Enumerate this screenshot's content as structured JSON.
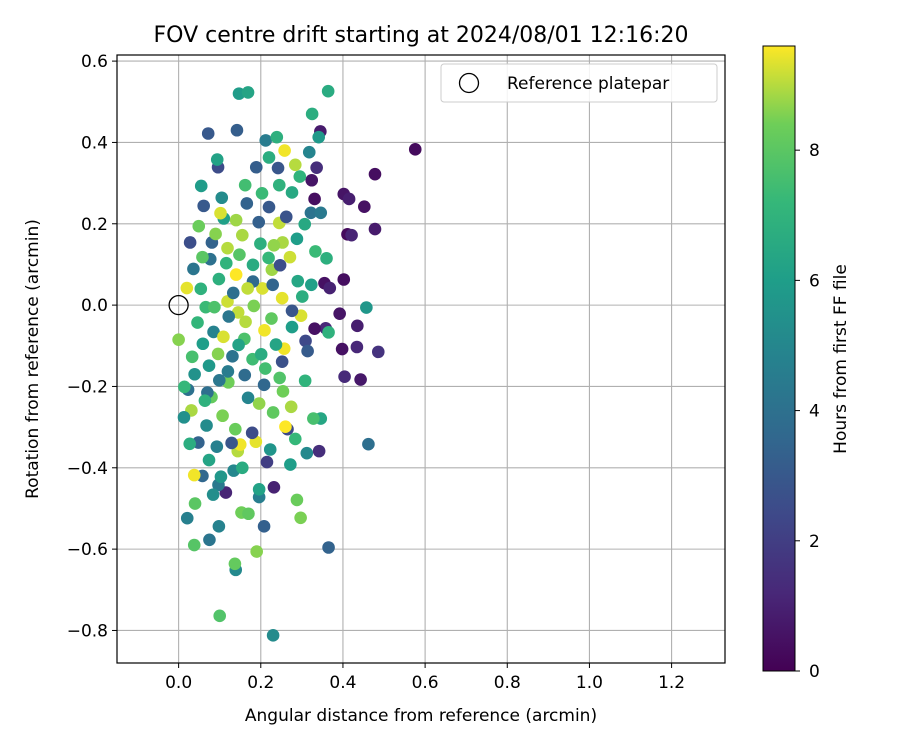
{
  "chart_data": {
    "type": "scatter",
    "title": "FOV centre drift starting at 2024/08/01 12:16:20",
    "xlabel": "Angular distance from reference (arcmin)",
    "ylabel": "Rotation from reference (arcmin)",
    "xlim": [
      -0.15,
      1.33
    ],
    "ylim": [
      -0.88,
      0.615
    ],
    "xticks": [
      "0.0",
      "0.2",
      "0.4",
      "0.6",
      "0.8",
      "1.0",
      "1.2"
    ],
    "yticks": [
      "−0.8",
      "−0.6",
      "−0.4",
      "−0.2",
      "0.0",
      "0.2",
      "0.4",
      "0.6"
    ],
    "grid": true,
    "legend": {
      "placement": "upper right",
      "entries": [
        "Reference platepar"
      ]
    },
    "reference_point": {
      "x": 0.0,
      "y": 0.0
    },
    "colorbar": {
      "label": "Hours from first FF file",
      "colormap": "viridis",
      "range": [
        0,
        9.6
      ],
      "ticks": [
        "0",
        "2",
        "4",
        "6",
        "8"
      ]
    },
    "points": [
      {
        "x": 0.576,
        "y": 0.383,
        "h": 0.3
      },
      {
        "x": 0.478,
        "y": 0.322,
        "h": 0.4
      },
      {
        "x": 0.402,
        "y": 0.273,
        "h": 0.6
      },
      {
        "x": 0.415,
        "y": 0.261,
        "h": 0.9
      },
      {
        "x": 0.452,
        "y": 0.242,
        "h": 0.5
      },
      {
        "x": 0.478,
        "y": 0.187,
        "h": 0.8
      },
      {
        "x": 0.411,
        "y": 0.174,
        "h": 0.3
      },
      {
        "x": 0.421,
        "y": 0.172,
        "h": 1.1
      },
      {
        "x": 0.402,
        "y": 0.063,
        "h": 0.4
      },
      {
        "x": 0.392,
        "y": -0.021,
        "h": 0.6
      },
      {
        "x": 0.435,
        "y": -0.051,
        "h": 0.9
      },
      {
        "x": 0.398,
        "y": -0.108,
        "h": 0.5
      },
      {
        "x": 0.434,
        "y": -0.103,
        "h": 1.2
      },
      {
        "x": 0.486,
        "y": -0.115,
        "h": 1.6
      },
      {
        "x": 0.404,
        "y": -0.176,
        "h": 1.3
      },
      {
        "x": 0.443,
        "y": -0.183,
        "h": 0.7
      },
      {
        "x": 0.345,
        "y": 0.427,
        "h": 0.8
      },
      {
        "x": 0.336,
        "y": 0.338,
        "h": 1.4
      },
      {
        "x": 0.324,
        "y": 0.307,
        "h": 0.6
      },
      {
        "x": 0.331,
        "y": 0.261,
        "h": 0.4
      },
      {
        "x": 0.355,
        "y": 0.054,
        "h": 0.5
      },
      {
        "x": 0.368,
        "y": 0.042,
        "h": 1.0
      },
      {
        "x": 0.358,
        "y": -0.057,
        "h": 1.2
      },
      {
        "x": 0.331,
        "y": -0.058,
        "h": 0.5
      },
      {
        "x": 0.309,
        "y": -0.088,
        "h": 2.4
      },
      {
        "x": 0.342,
        "y": -0.359,
        "h": 1.4
      },
      {
        "x": 0.232,
        "y": -0.448,
        "h": 1.0
      },
      {
        "x": 0.115,
        "y": -0.461,
        "h": 1.1
      },
      {
        "x": 0.215,
        "y": -0.386,
        "h": 2.0
      },
      {
        "x": 0.265,
        "y": -0.305,
        "h": 2.4
      },
      {
        "x": 0.142,
        "y": 0.43,
        "h": 3.2
      },
      {
        "x": 0.072,
        "y": 0.422,
        "h": 3.0
      },
      {
        "x": 0.096,
        "y": 0.339,
        "h": 2.5
      },
      {
        "x": 0.189,
        "y": 0.339,
        "h": 3.2
      },
      {
        "x": 0.242,
        "y": 0.337,
        "h": 2.9
      },
      {
        "x": 0.028,
        "y": 0.154,
        "h": 2.6
      },
      {
        "x": 0.081,
        "y": 0.154,
        "h": 3.4
      },
      {
        "x": 0.061,
        "y": 0.244,
        "h": 3.0
      },
      {
        "x": 0.208,
        "y": -0.544,
        "h": 3.3
      },
      {
        "x": 0.365,
        "y": -0.596,
        "h": 3.4
      },
      {
        "x": 0.462,
        "y": -0.342,
        "h": 3.9
      },
      {
        "x": 0.075,
        "y": -0.577,
        "h": 4.2
      },
      {
        "x": 0.021,
        "y": -0.524,
        "h": 4.7
      },
      {
        "x": 0.023,
        "y": -0.208,
        "h": 4.0
      },
      {
        "x": 0.058,
        "y": -0.42,
        "h": 3.6
      },
      {
        "x": 0.097,
        "y": -0.442,
        "h": 4.4
      },
      {
        "x": 0.196,
        "y": -0.472,
        "h": 4.6
      },
      {
        "x": 0.23,
        "y": -0.812,
        "h": 5.2
      },
      {
        "x": 0.139,
        "y": -0.651,
        "h": 5.1
      },
      {
        "x": 0.098,
        "y": -0.544,
        "h": 4.8
      },
      {
        "x": 0.322,
        "y": 0.227,
        "h": 4.1
      },
      {
        "x": 0.346,
        "y": 0.227,
        "h": 4.4
      },
      {
        "x": 0.341,
        "y": 0.413,
        "h": 5.8
      },
      {
        "x": 0.318,
        "y": 0.376,
        "h": 4.9
      },
      {
        "x": 0.212,
        "y": 0.405,
        "h": 4.5
      },
      {
        "x": 0.147,
        "y": 0.52,
        "h": 5.9
      },
      {
        "x": 0.364,
        "y": 0.526,
        "h": 6.6
      },
      {
        "x": 0.11,
        "y": 0.213,
        "h": 6.1
      },
      {
        "x": 0.325,
        "y": 0.47,
        "h": 6.7
      },
      {
        "x": 0.36,
        "y": 0.115,
        "h": 6.8
      },
      {
        "x": 0.457,
        "y": -0.006,
        "h": 5.7
      },
      {
        "x": 0.365,
        "y": -0.067,
        "h": 6.9
      },
      {
        "x": 0.346,
        "y": -0.279,
        "h": 6.4
      },
      {
        "x": 0.272,
        "y": -0.392,
        "h": 6.0
      },
      {
        "x": 0.239,
        "y": 0.413,
        "h": 6.8
      },
      {
        "x": 0.094,
        "y": 0.358,
        "h": 6.2
      },
      {
        "x": 0.055,
        "y": 0.293,
        "h": 5.9
      },
      {
        "x": 0.105,
        "y": 0.264,
        "h": 5.2
      },
      {
        "x": 0.169,
        "y": 0.523,
        "h": 6.3
      },
      {
        "x": 0.22,
        "y": 0.363,
        "h": 6.7
      },
      {
        "x": 0.276,
        "y": 0.277,
        "h": 6.5
      },
      {
        "x": 0.295,
        "y": 0.316,
        "h": 7.0
      },
      {
        "x": 0.333,
        "y": 0.132,
        "h": 7.3
      },
      {
        "x": 0.258,
        "y": 0.38,
        "h": 9.5
      },
      {
        "x": 0.284,
        "y": 0.345,
        "h": 9.0
      },
      {
        "x": 0.102,
        "y": 0.226,
        "h": 9.3
      },
      {
        "x": 0.253,
        "y": 0.154,
        "h": 8.9
      },
      {
        "x": 0.245,
        "y": 0.202,
        "h": 9.1
      },
      {
        "x": 0.271,
        "y": 0.118,
        "h": 9.2
      },
      {
        "x": 0.02,
        "y": 0.042,
        "h": 9.4
      },
      {
        "x": 0.0,
        "y": -0.085,
        "h": 8.6
      },
      {
        "x": 0.031,
        "y": -0.259,
        "h": 8.9
      },
      {
        "x": 0.04,
        "y": -0.488,
        "h": 8.0
      },
      {
        "x": 0.038,
        "y": -0.59,
        "h": 7.9
      },
      {
        "x": 0.1,
        "y": -0.764,
        "h": 7.8
      },
      {
        "x": 0.137,
        "y": -0.636,
        "h": 8.2
      },
      {
        "x": 0.19,
        "y": -0.606,
        "h": 8.6
      },
      {
        "x": 0.153,
        "y": -0.51,
        "h": 8.4
      },
      {
        "x": 0.17,
        "y": -0.513,
        "h": 8.1
      },
      {
        "x": 0.288,
        "y": -0.479,
        "h": 8.3
      },
      {
        "x": 0.297,
        "y": -0.523,
        "h": 8.5
      },
      {
        "x": 0.038,
        "y": -0.418,
        "h": 9.5
      },
      {
        "x": 0.144,
        "y": -0.359,
        "h": 9.0
      },
      {
        "x": 0.15,
        "y": -0.343,
        "h": 9.5
      },
      {
        "x": 0.188,
        "y": -0.336,
        "h": 9.4
      },
      {
        "x": 0.26,
        "y": -0.299,
        "h": 9.6
      },
      {
        "x": 0.274,
        "y": -0.25,
        "h": 8.9
      },
      {
        "x": 0.257,
        "y": -0.107,
        "h": 9.5
      },
      {
        "x": 0.298,
        "y": -0.026,
        "h": 9.3
      },
      {
        "x": 0.252,
        "y": 0.017,
        "h": 9.4
      },
      {
        "x": 0.14,
        "y": 0.075,
        "h": 9.6
      },
      {
        "x": 0.119,
        "y": 0.009,
        "h": 9.2
      },
      {
        "x": 0.145,
        "y": -0.018,
        "h": 9.1
      },
      {
        "x": 0.209,
        "y": -0.062,
        "h": 9.5
      },
      {
        "x": 0.163,
        "y": -0.041,
        "h": 9.0
      },
      {
        "x": 0.204,
        "y": 0.041,
        "h": 9.3
      },
      {
        "x": 0.227,
        "y": 0.087,
        "h": 8.8
      },
      {
        "x": 0.119,
        "y": 0.14,
        "h": 9.0
      },
      {
        "x": 0.155,
        "y": 0.172,
        "h": 8.9
      },
      {
        "x": 0.148,
        "y": 0.124,
        "h": 7.9
      },
      {
        "x": 0.232,
        "y": 0.147,
        "h": 8.7
      },
      {
        "x": 0.096,
        "y": -0.12,
        "h": 8.6
      },
      {
        "x": 0.121,
        "y": -0.19,
        "h": 8.4
      },
      {
        "x": 0.08,
        "y": -0.226,
        "h": 8.2
      },
      {
        "x": 0.107,
        "y": -0.272,
        "h": 8.5
      },
      {
        "x": 0.138,
        "y": -0.305,
        "h": 8.3
      },
      {
        "x": 0.196,
        "y": -0.242,
        "h": 8.7
      },
      {
        "x": 0.23,
        "y": -0.264,
        "h": 8.1
      },
      {
        "x": 0.254,
        "y": -0.212,
        "h": 8.4
      },
      {
        "x": 0.328,
        "y": -0.279,
        "h": 7.6
      },
      {
        "x": 0.284,
        "y": -0.329,
        "h": 7.2
      },
      {
        "x": 0.246,
        "y": -0.179,
        "h": 7.8
      },
      {
        "x": 0.211,
        "y": -0.156,
        "h": 7.5
      },
      {
        "x": 0.18,
        "y": -0.133,
        "h": 7.4
      },
      {
        "x": 0.16,
        "y": -0.083,
        "h": 7.7
      },
      {
        "x": 0.046,
        "y": -0.043,
        "h": 7.1
      },
      {
        "x": 0.066,
        "y": -0.005,
        "h": 7.3
      },
      {
        "x": 0.054,
        "y": 0.04,
        "h": 6.9
      },
      {
        "x": 0.098,
        "y": 0.064,
        "h": 6.8
      },
      {
        "x": 0.116,
        "y": 0.103,
        "h": 7.0
      },
      {
        "x": 0.181,
        "y": 0.099,
        "h": 6.6
      },
      {
        "x": 0.199,
        "y": 0.151,
        "h": 6.8
      },
      {
        "x": 0.219,
        "y": 0.116,
        "h": 7.2
      },
      {
        "x": 0.29,
        "y": 0.059,
        "h": 6.4
      },
      {
        "x": 0.323,
        "y": 0.05,
        "h": 6.1
      },
      {
        "x": 0.301,
        "y": 0.021,
        "h": 6.7
      },
      {
        "x": 0.276,
        "y": -0.054,
        "h": 6.0
      },
      {
        "x": 0.237,
        "y": -0.097,
        "h": 6.3
      },
      {
        "x": 0.201,
        "y": -0.121,
        "h": 6.6
      },
      {
        "x": 0.146,
        "y": -0.098,
        "h": 6.2
      },
      {
        "x": 0.074,
        "y": -0.149,
        "h": 5.8
      },
      {
        "x": 0.059,
        "y": -0.095,
        "h": 6.0
      },
      {
        "x": 0.039,
        "y": -0.17,
        "h": 5.5
      },
      {
        "x": 0.013,
        "y": -0.276,
        "h": 5.4
      },
      {
        "x": 0.068,
        "y": -0.296,
        "h": 5.2
      },
      {
        "x": 0.134,
        "y": -0.407,
        "h": 5.0
      },
      {
        "x": 0.093,
        "y": -0.348,
        "h": 4.7
      },
      {
        "x": 0.169,
        "y": -0.228,
        "h": 4.9
      },
      {
        "x": 0.12,
        "y": -0.163,
        "h": 4.5
      },
      {
        "x": 0.085,
        "y": -0.066,
        "h": 4.8
      },
      {
        "x": 0.122,
        "y": -0.028,
        "h": 4.3
      },
      {
        "x": 0.036,
        "y": 0.089,
        "h": 4.2
      },
      {
        "x": 0.077,
        "y": 0.113,
        "h": 4.0
      },
      {
        "x": 0.133,
        "y": 0.03,
        "h": 3.9
      },
      {
        "x": 0.181,
        "y": 0.058,
        "h": 3.7
      },
      {
        "x": 0.229,
        "y": 0.05,
        "h": 3.5
      },
      {
        "x": 0.195,
        "y": 0.204,
        "h": 3.3
      },
      {
        "x": 0.166,
        "y": 0.25,
        "h": 3.4
      },
      {
        "x": 0.22,
        "y": 0.241,
        "h": 3.0
      },
      {
        "x": 0.262,
        "y": 0.217,
        "h": 2.8
      },
      {
        "x": 0.247,
        "y": 0.098,
        "h": 2.6
      },
      {
        "x": 0.276,
        "y": -0.014,
        "h": 2.9
      },
      {
        "x": 0.314,
        "y": -0.113,
        "h": 3.1
      },
      {
        "x": 0.252,
        "y": -0.139,
        "h": 2.7
      },
      {
        "x": 0.208,
        "y": -0.196,
        "h": 3.6
      },
      {
        "x": 0.161,
        "y": -0.172,
        "h": 3.8
      },
      {
        "x": 0.131,
        "y": -0.126,
        "h": 4.1
      },
      {
        "x": 0.099,
        "y": -0.185,
        "h": 4.3
      },
      {
        "x": 0.07,
        "y": -0.215,
        "h": 3.9
      },
      {
        "x": 0.048,
        "y": -0.338,
        "h": 3.4
      },
      {
        "x": 0.129,
        "y": -0.339,
        "h": 2.9
      },
      {
        "x": 0.179,
        "y": -0.314,
        "h": 2.5
      },
      {
        "x": 0.312,
        "y": -0.364,
        "h": 5.1
      },
      {
        "x": 0.223,
        "y": -0.355,
        "h": 5.6
      },
      {
        "x": 0.196,
        "y": -0.453,
        "h": 6.2
      },
      {
        "x": 0.155,
        "y": -0.4,
        "h": 6.6
      },
      {
        "x": 0.084,
        "y": -0.466,
        "h": 5.3
      },
      {
        "x": 0.064,
        "y": -0.235,
        "h": 6.9
      },
      {
        "x": 0.087,
        "y": -0.005,
        "h": 7.7
      },
      {
        "x": 0.058,
        "y": 0.118,
        "h": 8.0
      },
      {
        "x": 0.049,
        "y": 0.194,
        "h": 8.3
      },
      {
        "x": 0.09,
        "y": 0.175,
        "h": 8.6
      },
      {
        "x": 0.14,
        "y": 0.209,
        "h": 8.8
      },
      {
        "x": 0.162,
        "y": 0.295,
        "h": 7.5
      },
      {
        "x": 0.203,
        "y": 0.275,
        "h": 7.3
      },
      {
        "x": 0.245,
        "y": 0.295,
        "h": 6.9
      },
      {
        "x": 0.307,
        "y": 0.199,
        "h": 6.5
      },
      {
        "x": 0.288,
        "y": 0.163,
        "h": 6.0
      },
      {
        "x": 0.308,
        "y": -0.186,
        "h": 7.0
      },
      {
        "x": 0.226,
        "y": -0.033,
        "h": 8.1
      },
      {
        "x": 0.183,
        "y": -0.002,
        "h": 8.5
      },
      {
        "x": 0.168,
        "y": 0.041,
        "h": 9.1
      },
      {
        "x": 0.109,
        "y": -0.078,
        "h": 9.3
      },
      {
        "x": 0.033,
        "y": -0.127,
        "h": 7.6
      },
      {
        "x": 0.014,
        "y": -0.201,
        "h": 7.2
      },
      {
        "x": 0.027,
        "y": -0.341,
        "h": 6.7
      },
      {
        "x": 0.074,
        "y": -0.381,
        "h": 6.3
      },
      {
        "x": 0.103,
        "y": -0.422,
        "h": 5.7
      }
    ]
  }
}
